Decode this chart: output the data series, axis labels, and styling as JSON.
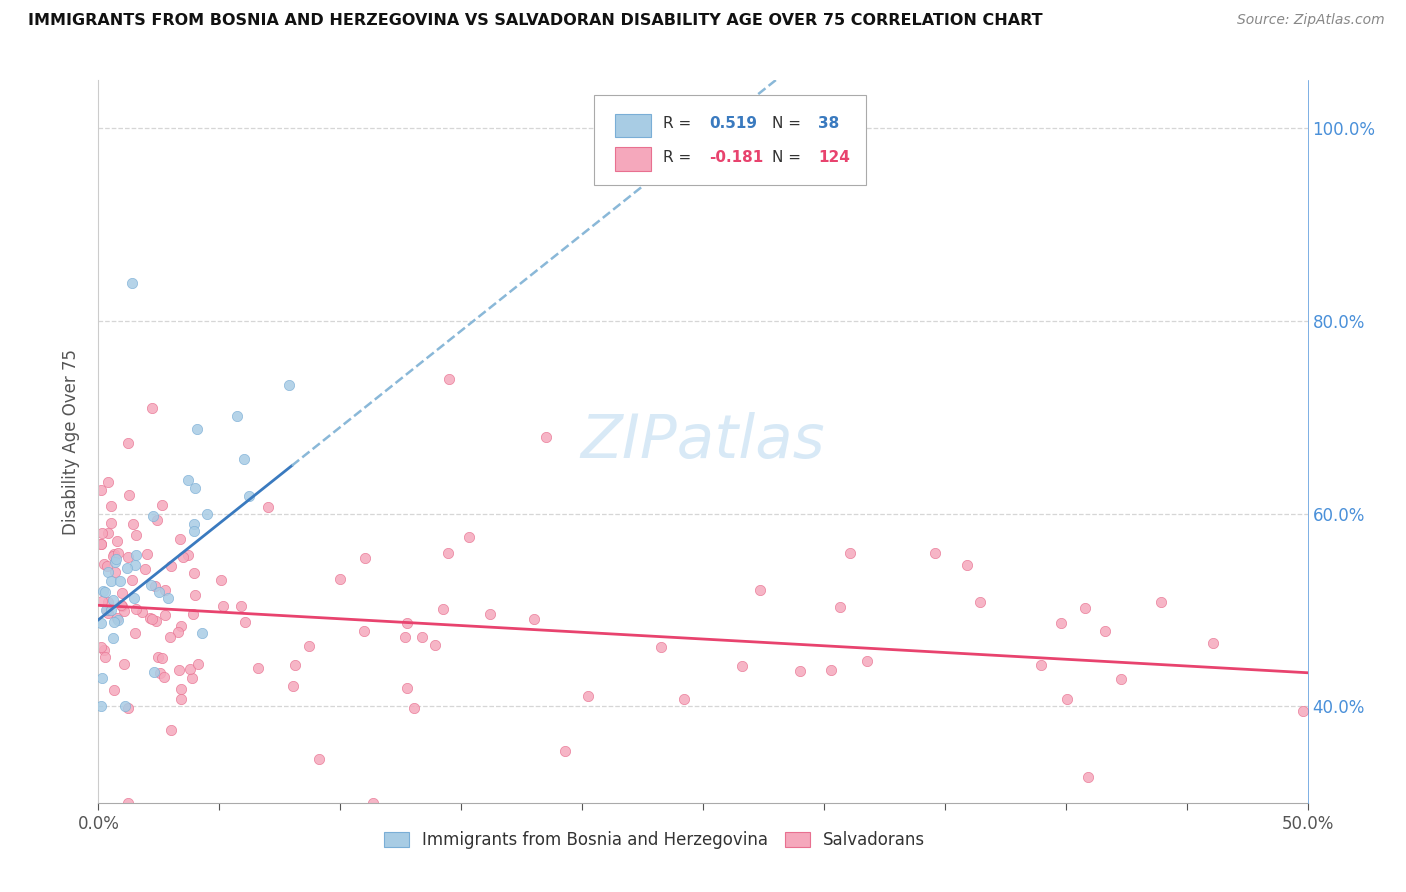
{
  "title": "IMMIGRANTS FROM BOSNIA AND HERZEGOVINA VS SALVADORAN DISABILITY AGE OVER 75 CORRELATION CHART",
  "source": "Source: ZipAtlas.com",
  "ylabel": "Disability Age Over 75",
  "legend1_R": "0.519",
  "legend1_N": "38",
  "legend2_R": "-0.181",
  "legend2_N": "124",
  "blue_dot_color": "#a8cce4",
  "blue_dot_edge": "#7aaed6",
  "pink_dot_color": "#f5a8bc",
  "pink_dot_edge": "#e87090",
  "blue_line_color": "#3a7abf",
  "blue_dash_color": "#8ab8d8",
  "pink_line_color": "#e8436e",
  "right_axis_color": "#4a90d9",
  "watermark": "ZIPatlas",
  "xlim": [
    0.0,
    0.5
  ],
  "ylim": [
    0.3,
    1.05
  ],
  "right_yticks": [
    0.4,
    0.6,
    0.8,
    1.0
  ],
  "right_ytick_labels": [
    "40.0%",
    "60.0%",
    "80.0%",
    "100.0%"
  ],
  "bosnia_seed": 12,
  "salvadoran_seed": 99
}
